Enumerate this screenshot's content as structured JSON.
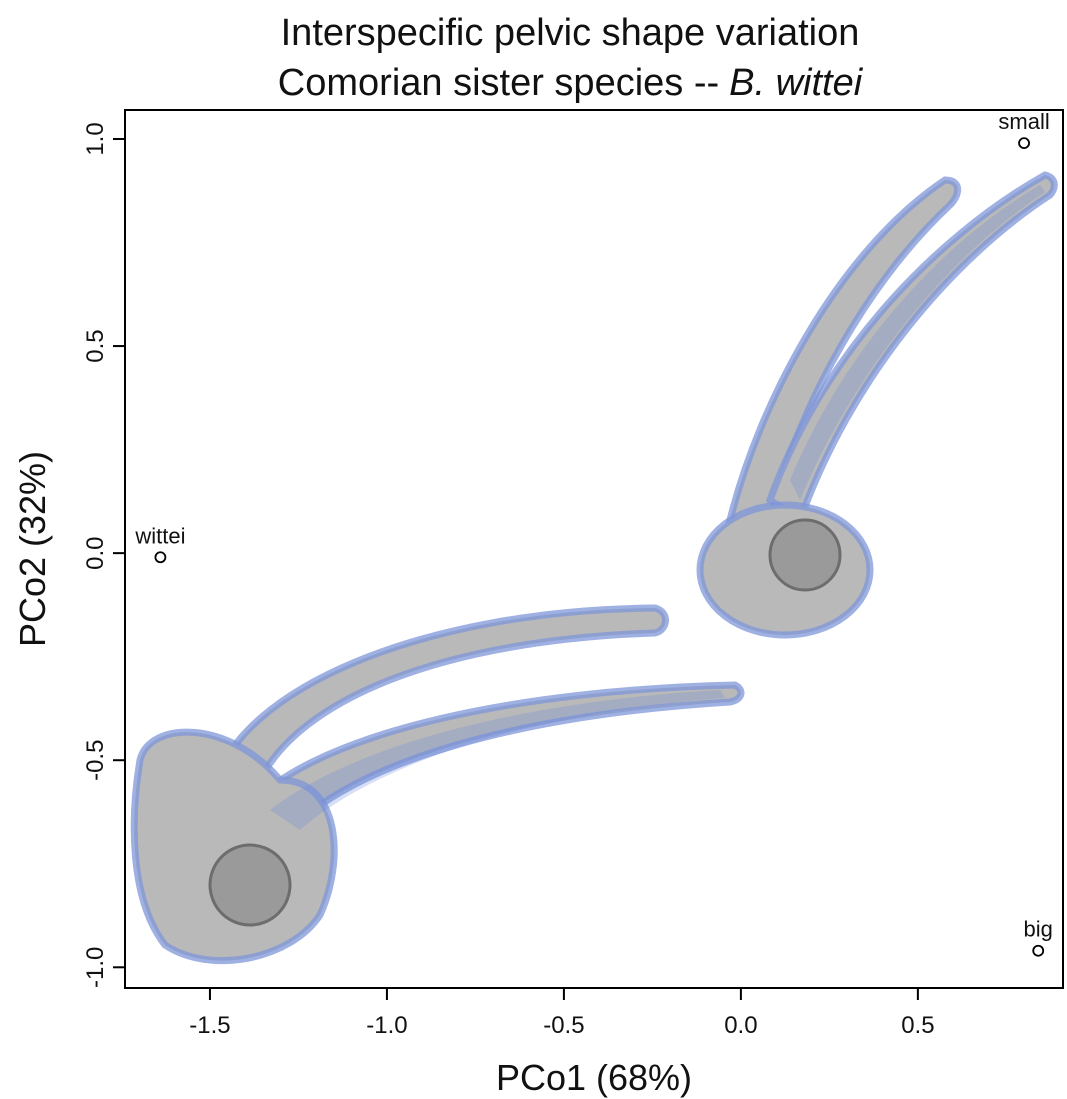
{
  "chart_data": {
    "type": "scatter",
    "title": "Interspecific pelvic shape variation",
    "subtitle_parts": [
      {
        "text": "Comorian sister species --",
        "style": "normal"
      },
      {
        "text": "B. wittei",
        "style": "italic"
      }
    ],
    "x_label": "PCo1 (68%)",
    "y_label": "PCo2 (32%)",
    "x": [
      -1.64,
      0.8,
      0.84
    ],
    "values": [
      -0.01,
      0.99,
      -0.96
    ],
    "point_labels": [
      "wittei",
      "small",
      "big"
    ],
    "color": "#000000",
    "xlim": [
      -1.74,
      0.91
    ],
    "ylim": [
      -1.05,
      1.07
    ],
    "xticks": [
      -1.5,
      {
        "value": -1,
        "label": "-1.0"
      },
      -0.5,
      {
        "value": 0,
        "label": "0.0"
      },
      0.5
    ],
    "yticks": [
      {
        "value": -1,
        "label": "-1.0"
      },
      -0.5,
      {
        "value": 0,
        "label": "0.0"
      },
      0.5,
      {
        "value": 1,
        "label": "1.0"
      }
    ]
  }
}
